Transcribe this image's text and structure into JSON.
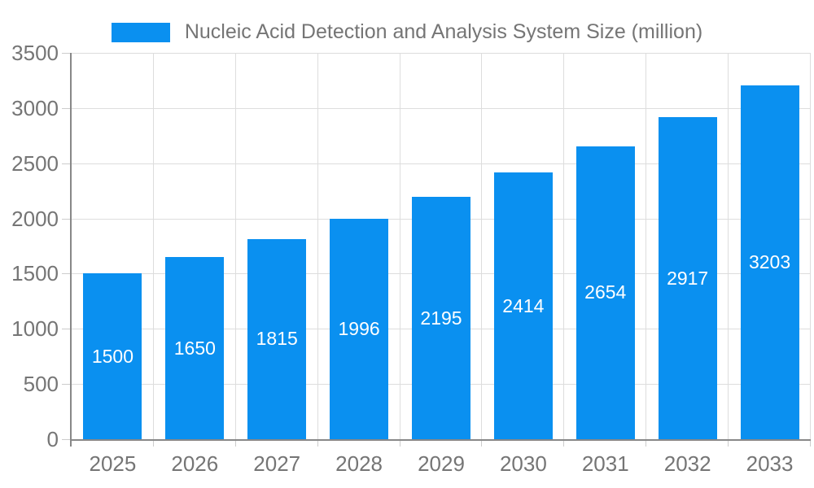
{
  "legend": {
    "label": "Nucleic Acid Detection and Analysis System Size (million)",
    "swatch_color": "#0a90f0"
  },
  "chart_data": {
    "type": "bar",
    "title": "Nucleic Acid Detection and Analysis System Size (million)",
    "categories": [
      "2025",
      "2026",
      "2027",
      "2028",
      "2029",
      "2030",
      "2031",
      "2032",
      "2033"
    ],
    "values": [
      1500,
      1650,
      1815,
      1996,
      2195,
      2414,
      2654,
      2917,
      3203
    ],
    "xlabel": "",
    "ylabel": "",
    "ylim": [
      0,
      3500
    ],
    "yticks": [
      0,
      500,
      1000,
      1500,
      2000,
      2500,
      3000,
      3500
    ],
    "grid": true,
    "legend_position": "top",
    "bar_labels_inside": true
  },
  "colors": {
    "bar": "#0a90f0",
    "axis": "#888888",
    "grid": "#dddddd",
    "tick": "#cccccc",
    "text": "#757575",
    "bar_label": "#ffffff",
    "background": "#ffffff"
  }
}
